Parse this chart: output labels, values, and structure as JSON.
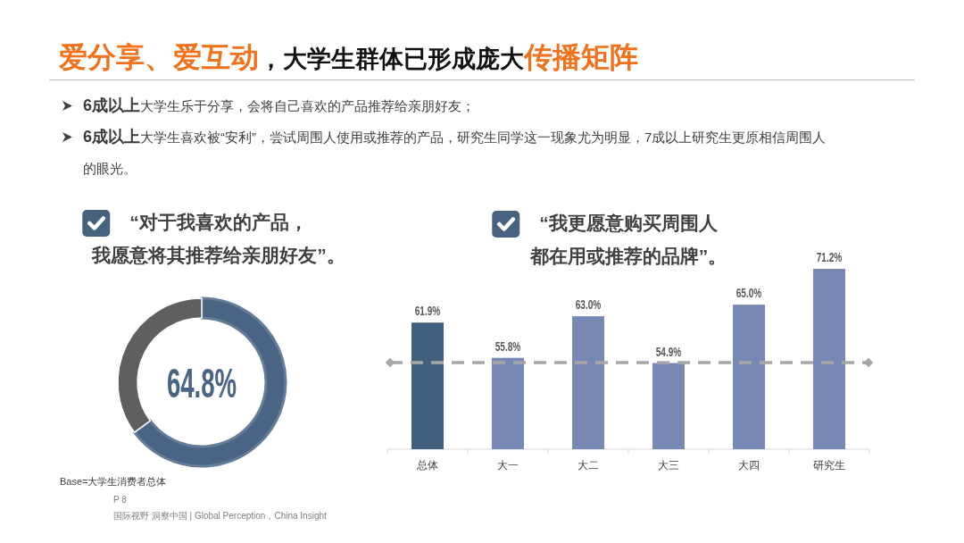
{
  "chart_data": [
    {
      "type": "other",
      "title": "**爱分享、爱互动**，大学生群体已形成庞大**传播矩阵**",
      "annotations": [
        "**6成以上**大学生乐于分享，会将自己喜欢的产品推荐给亲朋好友；",
        "**6成以上**大学生喜欢被“安利”，尝试周围人使用或推荐的产品，研究生同学这一现象尤为明显，7成以上研究生更原相信周围人的眼光。",
        "P 8",
        "国际视野  洞察中国 | Global Perception，China Insight"
      ]
    },
    {
      "type": "donut",
      "title": "“对于我喜欢的产品，我愿意将其推荐给亲朋好友”。",
      "categories": [
        null,
        null
      ],
      "values": [
        64.8,
        35.2
      ],
      "colors": [
        "#4a6584",
        "#5f5f5f"
      ],
      "value_labels": [
        "64.8%",
        null
      ],
      "annotations": [
        "Base=大学生消费者总体"
      ]
    },
    {
      "type": "bar",
      "title": "“我更愿意购买周围人都在用或推荐的品牌”。",
      "categories": [
        "总体",
        "大一",
        "大二",
        "大三",
        "大四",
        "研究生"
      ],
      "values": [
        61.9,
        55.8,
        63.0,
        54.9,
        65.0,
        71.2
      ],
      "colors": [
        "#41607e",
        "#7788b5",
        "#7788b5",
        "#7788b5",
        "#7788b5",
        "#7788b5"
      ],
      "value_labels": [
        "61.9%",
        "55.8%",
        "63.0%",
        "54.9%",
        "65.0%",
        "71.2%"
      ],
      "ylim": [
        40,
        71.2
      ],
      "tick_labels": "x",
      "ref_lines": [
        {
          "axis": "y",
          "value": 55,
          "color": "#a6a6a6",
          "line_style": "dashed"
        }
      ]
    }
  ]
}
